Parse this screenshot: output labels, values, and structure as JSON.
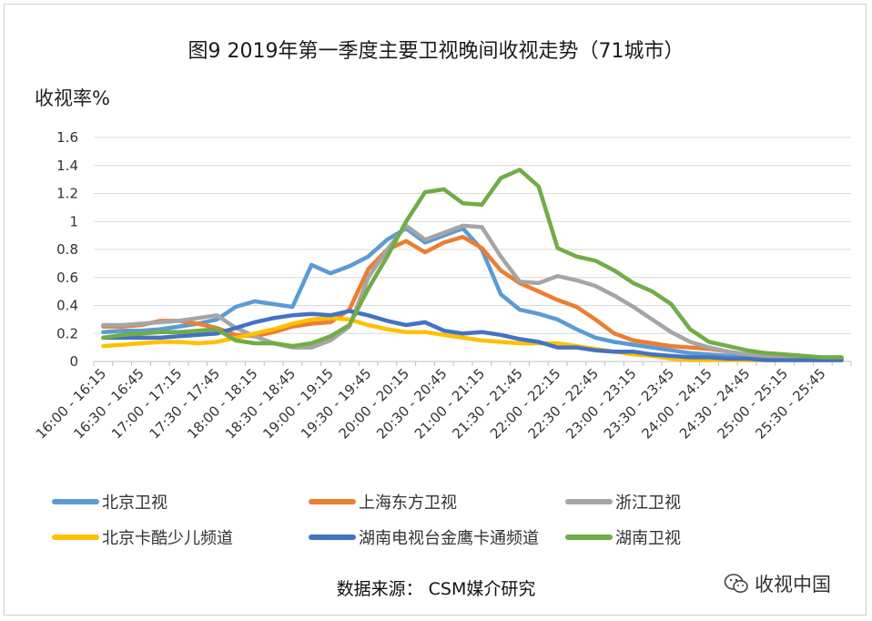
{
  "title": "图9  2019年第一季度主要卫视晚间收视走势（71城市）",
  "source": "数据来源：   CSM媒介研究",
  "watermark": "收视中国",
  "watermark_icon": "wechat-icon",
  "chart_data": {
    "type": "line",
    "title": "图9  2019年第一季度主要卫视晚间收视走势（71城市）",
    "ylabel": "收视率%",
    "xlabel": "",
    "ylim": [
      0,
      1.6
    ],
    "yticks": [
      "0",
      "0.2",
      "0.4",
      "0.6",
      "0.8",
      "1",
      "1.2",
      "1.4",
      "1.6"
    ],
    "grid": true,
    "legend_position": "bottom",
    "x": [
      "16:00 - 16:15",
      "16:15 - 16:30",
      "16:30 - 16:45",
      "16:45 - 17:00",
      "17:00 - 17:15",
      "17:15 - 17:30",
      "17:30 - 17:45",
      "17:45 - 18:00",
      "18:00 - 18:15",
      "18:15 - 18:30",
      "18:30 - 18:45",
      "18:45 - 19:00",
      "19:00 - 19:15",
      "19:15 - 19:30",
      "19:30 - 19:45",
      "19:45 - 20:00",
      "20:00 - 20:15",
      "20:15 - 20:30",
      "20:30 - 20:45",
      "20:45 - 21:00",
      "21:00 - 21:15",
      "21:15 - 21:30",
      "21:30 - 21:45",
      "21:45 - 22:00",
      "22:00 - 22:15",
      "22:15 - 22:30",
      "22:30 - 22:45",
      "22:45 - 23:00",
      "23:00 - 23:15",
      "23:15 - 23:30",
      "23:30 - 23:45",
      "23:45 - 24:00",
      "24:00 - 24:15",
      "24:15 - 24:30",
      "24:30 - 24:45",
      "24:45 - 25:00",
      "25:00 - 25:15",
      "25:15 - 25:30",
      "25:30 - 25:45",
      "25:45 - 26:00"
    ],
    "xtick_labels": [
      "16:00 - 16:15",
      "16:30 - 16:45",
      "17:00 - 17:15",
      "17:30 - 17:45",
      "18:00 - 18:15",
      "18:30 - 18:45",
      "19:00 - 19:15",
      "19:30 - 19:45",
      "20:00 - 20:15",
      "20:30 - 20:45",
      "21:00 - 21:15",
      "21:30 - 21:45",
      "22:00 - 22:15",
      "22:30 - 22:45",
      "23:00 - 23:15",
      "23:30 - 23:45",
      "24:00 - 24:15",
      "24:30 - 24:45",
      "25:00 - 25:15",
      "25:30 - 25:45"
    ],
    "series": [
      {
        "name": "北京卫视",
        "color": "#5b9bd5",
        "values": [
          0.21,
          0.22,
          0.22,
          0.23,
          0.25,
          0.27,
          0.3,
          0.39,
          0.43,
          0.41,
          0.39,
          0.69,
          0.63,
          0.68,
          0.75,
          0.87,
          0.95,
          0.85,
          0.9,
          0.95,
          0.8,
          0.48,
          0.37,
          0.34,
          0.3,
          0.23,
          0.17,
          0.14,
          0.12,
          0.1,
          0.08,
          0.06,
          0.05,
          0.04,
          0.03,
          0.03,
          0.02,
          0.02,
          0.02,
          0.01
        ]
      },
      {
        "name": "上海东方卫视",
        "color": "#ed7d31",
        "values": [
          0.25,
          0.25,
          0.26,
          0.29,
          0.29,
          0.27,
          0.24,
          0.19,
          0.18,
          0.21,
          0.25,
          0.27,
          0.28,
          0.37,
          0.66,
          0.8,
          0.86,
          0.78,
          0.85,
          0.89,
          0.81,
          0.65,
          0.56,
          0.5,
          0.44,
          0.39,
          0.3,
          0.2,
          0.15,
          0.13,
          0.11,
          0.1,
          0.09,
          0.07,
          0.05,
          0.04,
          0.03,
          0.03,
          0.02,
          0.02
        ]
      },
      {
        "name": "浙江卫视",
        "color": "#a5a5a5",
        "values": [
          0.26,
          0.26,
          0.27,
          0.28,
          0.29,
          0.31,
          0.33,
          0.24,
          0.18,
          0.13,
          0.1,
          0.1,
          0.15,
          0.25,
          0.6,
          0.8,
          0.97,
          0.87,
          0.92,
          0.97,
          0.96,
          0.75,
          0.57,
          0.56,
          0.61,
          0.58,
          0.54,
          0.47,
          0.39,
          0.3,
          0.21,
          0.14,
          0.1,
          0.07,
          0.05,
          0.04,
          0.03,
          0.03,
          0.02,
          0.02
        ]
      },
      {
        "name": "北京卡酷少儿频道",
        "color": "#ffc000",
        "values": [
          0.11,
          0.12,
          0.13,
          0.14,
          0.14,
          0.13,
          0.14,
          0.17,
          0.2,
          0.23,
          0.27,
          0.3,
          0.31,
          0.3,
          0.26,
          0.23,
          0.21,
          0.21,
          0.19,
          0.17,
          0.15,
          0.14,
          0.13,
          0.13,
          0.13,
          0.11,
          0.09,
          0.07,
          0.05,
          0.04,
          0.02,
          0.01,
          0.01,
          0.01,
          0.01,
          0.01,
          0.01,
          0.01,
          0.01,
          0.01
        ]
      },
      {
        "name": "湖南电视台金鹰卡通频道",
        "color": "#4472c4",
        "values": [
          0.17,
          0.17,
          0.17,
          0.17,
          0.18,
          0.19,
          0.2,
          0.24,
          0.28,
          0.31,
          0.33,
          0.34,
          0.33,
          0.36,
          0.33,
          0.29,
          0.26,
          0.28,
          0.22,
          0.2,
          0.21,
          0.19,
          0.16,
          0.14,
          0.1,
          0.1,
          0.08,
          0.07,
          0.07,
          0.05,
          0.04,
          0.03,
          0.03,
          0.02,
          0.02,
          0.01,
          0.01,
          0.01,
          0.01,
          0.01
        ]
      },
      {
        "name": "湖南卫视",
        "color": "#70ad47",
        "values": [
          0.17,
          0.19,
          0.2,
          0.21,
          0.21,
          0.22,
          0.23,
          0.15,
          0.13,
          0.13,
          0.11,
          0.13,
          0.18,
          0.26,
          0.52,
          0.75,
          1.0,
          1.21,
          1.23,
          1.13,
          1.12,
          1.31,
          1.37,
          1.25,
          0.81,
          0.75,
          0.72,
          0.65,
          0.56,
          0.5,
          0.41,
          0.23,
          0.14,
          0.11,
          0.08,
          0.06,
          0.05,
          0.04,
          0.03,
          0.03
        ]
      }
    ]
  }
}
